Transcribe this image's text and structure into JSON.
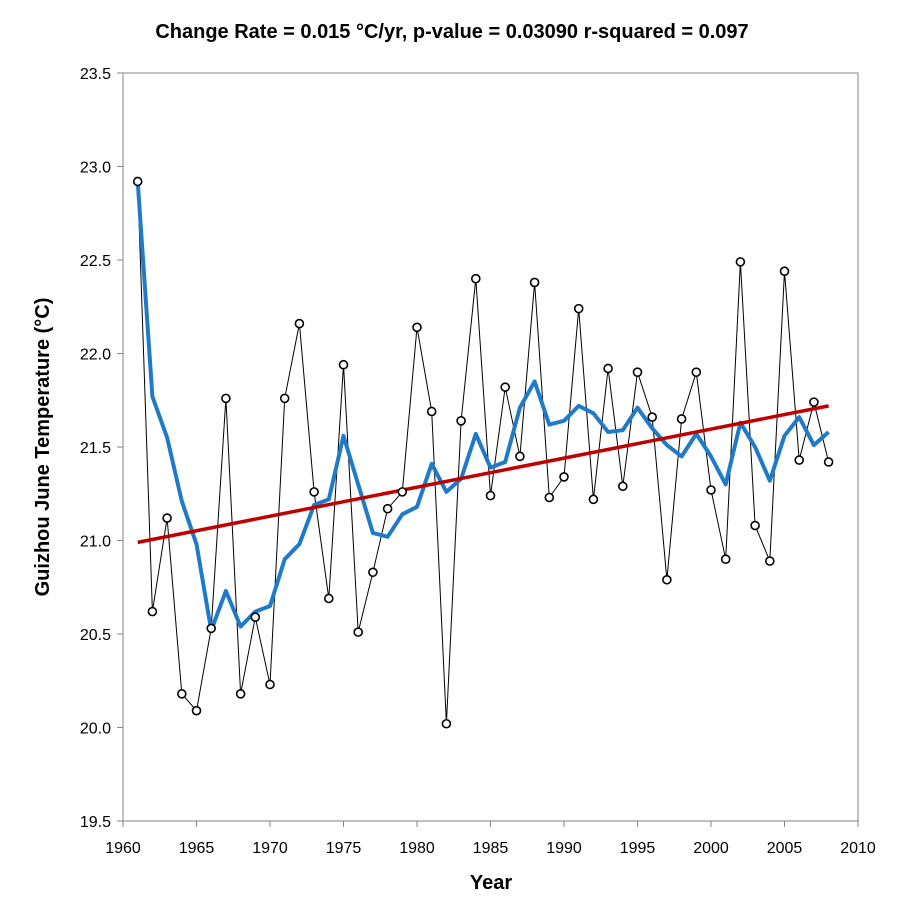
{
  "chart_data": {
    "type": "line",
    "title": "Change Rate =  0.015 °C/yr,  p-value =  0.03090  r-squared =  0.097",
    "xlabel": "Year",
    "ylabel": "Guizhou June Temperature (°C)",
    "xlim": [
      1960,
      2010
    ],
    "ylim": [
      19.5,
      23.5
    ],
    "x_ticks": [
      "1960",
      "1965",
      "1970",
      "1975",
      "1980",
      "1985",
      "1990",
      "1995",
      "2000",
      "2005",
      "2010"
    ],
    "y_ticks": [
      "19.5",
      "20.0",
      "20.5",
      "21.0",
      "21.5",
      "22.0",
      "22.5",
      "23.0",
      "23.5"
    ],
    "grid": false,
    "x": [
      1961,
      1962,
      1963,
      1964,
      1965,
      1966,
      1967,
      1968,
      1969,
      1970,
      1971,
      1972,
      1973,
      1974,
      1975,
      1976,
      1977,
      1978,
      1979,
      1980,
      1981,
      1982,
      1983,
      1984,
      1985,
      1986,
      1987,
      1988,
      1989,
      1990,
      1991,
      1992,
      1993,
      1994,
      1995,
      1996,
      1997,
      1998,
      1999,
      2000,
      2001,
      2002,
      2003,
      2004,
      2005,
      2006,
      2007,
      2008
    ],
    "series": [
      {
        "style": "thin black line with open circle markers",
        "color": "#000000",
        "values": [
          22.92,
          20.62,
          21.12,
          20.18,
          20.09,
          20.53,
          21.76,
          20.18,
          20.59,
          20.23,
          21.76,
          22.16,
          21.26,
          20.69,
          21.94,
          20.51,
          20.83,
          21.17,
          21.26,
          22.14,
          21.69,
          20.02,
          21.64,
          22.4,
          21.24,
          21.82,
          21.45,
          22.38,
          21.23,
          21.34,
          22.24,
          21.22,
          21.92,
          21.29,
          21.9,
          21.66,
          20.79,
          21.65,
          21.9,
          21.27,
          20.9,
          22.49,
          21.08,
          20.89,
          22.44,
          21.43,
          21.74,
          21.42
        ]
      },
      {
        "style": "thick smoothed line",
        "color": "#1f7bc8",
        "values": [
          22.92,
          21.77,
          21.55,
          21.21,
          20.98,
          20.52,
          20.73,
          20.54,
          20.62,
          20.65,
          20.9,
          20.98,
          21.19,
          21.22,
          21.56,
          21.3,
          21.04,
          21.02,
          21.14,
          21.18,
          21.41,
          21.26,
          21.33,
          21.57,
          21.39,
          21.42,
          21.71,
          21.85,
          21.62,
          21.64,
          21.72,
          21.68,
          21.58,
          21.59,
          21.71,
          21.6,
          21.51,
          21.45,
          21.57,
          21.45,
          21.3,
          21.63,
          21.5,
          21.32,
          21.56,
          21.66,
          21.51,
          21.58
        ]
      },
      {
        "style": "linear trend line",
        "color": "#c00000",
        "values": [
          20.99,
          21.72
        ],
        "x": [
          1961,
          2008
        ]
      }
    ]
  }
}
